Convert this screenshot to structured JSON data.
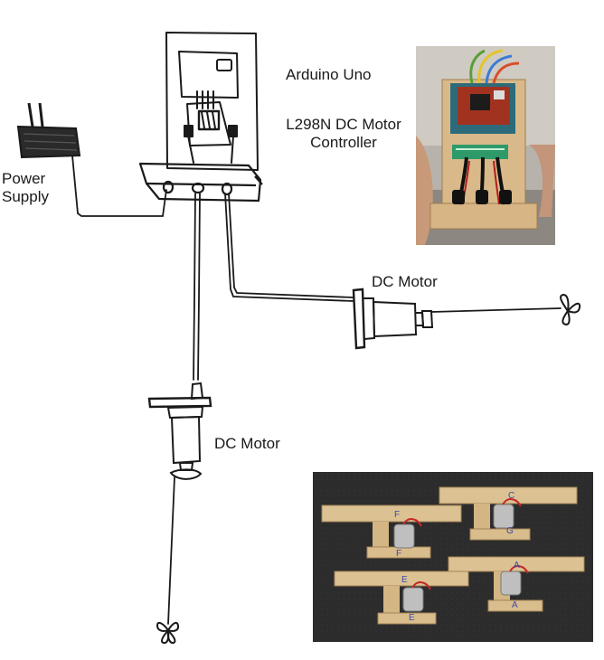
{
  "labels": {
    "arduino": "Arduino Uno",
    "controller_line1": "L298N DC Motor",
    "controller_line2": "Controller",
    "power_line1": "Power",
    "power_line2": "Supply",
    "motor_right": "DC Motor",
    "motor_bottom": "DC Motor"
  },
  "photos": {
    "controller_photo": {
      "photo_labels": []
    },
    "motor_mounts_photo": {
      "photo_labels": [
        "F",
        "C",
        "G",
        "F",
        "E",
        "A",
        "A",
        "E"
      ]
    }
  },
  "colors": {
    "ink": "#1a1a1a",
    "wood": "#d9b98a",
    "board_red": "#b8321f",
    "photo_dark": "#2a2a2a"
  }
}
